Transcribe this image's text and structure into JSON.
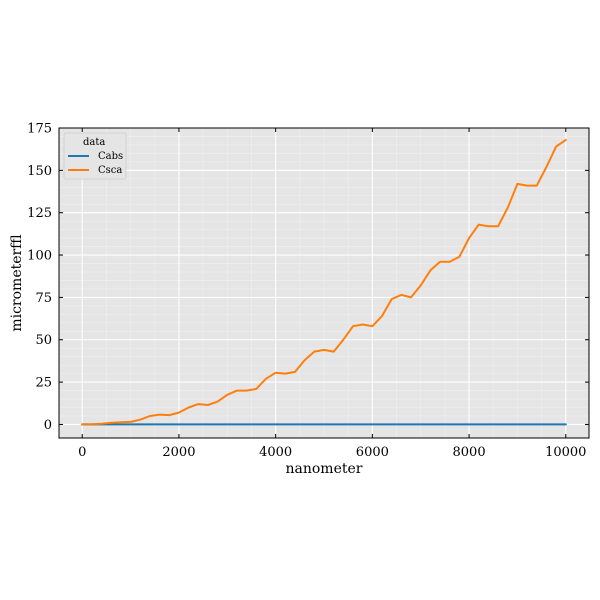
{
  "chart_data": {
    "type": "line",
    "title": "",
    "xlabel": "nanometer",
    "ylabel": "micrometerﬄ",
    "xlim": [
      -480,
      10480
    ],
    "ylim": [
      -8,
      175
    ],
    "x_ticks": [
      0,
      2000,
      4000,
      6000,
      8000,
      10000
    ],
    "x_tick_labels": [
      "0",
      "2000",
      "4000",
      "6000",
      "8000",
      "10000"
    ],
    "y_ticks": [
      0,
      25,
      50,
      75,
      100,
      125,
      150,
      175
    ],
    "y_tick_labels": [
      "0",
      "25",
      "50",
      "75",
      "100",
      "125",
      "150",
      "175"
    ],
    "grid": true,
    "legend": {
      "title": "data",
      "placement": "top-left"
    },
    "series": [
      {
        "name": "Cabs",
        "color": "#1f77b4",
        "x": [
          0,
          10000
        ],
        "y": [
          0,
          0
        ]
      },
      {
        "name": "Csca",
        "color": "#ff7f0e",
        "x": [
          0,
          200,
          400,
          600,
          800,
          1000,
          1200,
          1400,
          1600,
          1800,
          2000,
          2200,
          2400,
          2600,
          2800,
          3000,
          3200,
          3400,
          3600,
          3800,
          4000,
          4200,
          4400,
          4600,
          4800,
          5000,
          5200,
          5400,
          5600,
          5800,
          6000,
          6200,
          6400,
          6600,
          6800,
          7000,
          7200,
          7400,
          7600,
          7800,
          8000,
          8200,
          8400,
          8600,
          8800,
          9000,
          9200,
          9400,
          9600,
          9800,
          10000
        ],
        "y": [
          0,
          0.1,
          0.4,
          1,
          1.3,
          1.5,
          2.8,
          5,
          5.8,
          5.5,
          7,
          10,
          12,
          11.5,
          13.5,
          17.5,
          20,
          20,
          21,
          27,
          30.5,
          30,
          31,
          38,
          43,
          44,
          43,
          50,
          58,
          59,
          58,
          64,
          74,
          76.5,
          75,
          82,
          91,
          96,
          96,
          99,
          110,
          118,
          117,
          117,
          128,
          142,
          141,
          141,
          152,
          164,
          168
        ]
      }
    ]
  }
}
